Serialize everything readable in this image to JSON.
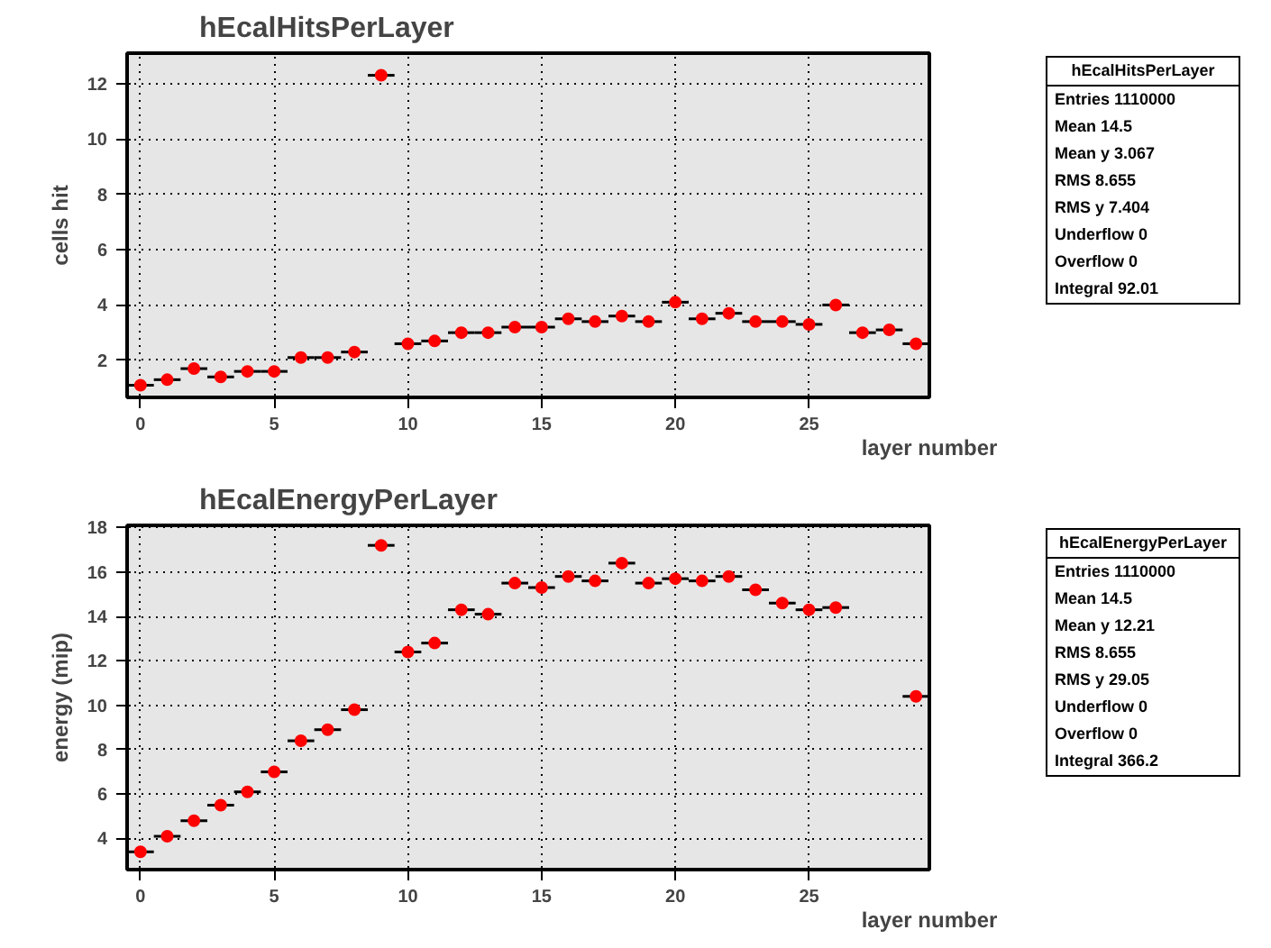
{
  "chart_data": [
    {
      "type": "scatter",
      "title": "hEcalHitsPerLayer",
      "xlabel": "layer number",
      "ylabel": "cells hit",
      "x": [
        0,
        1,
        2,
        3,
        4,
        5,
        6,
        7,
        8,
        9,
        10,
        11,
        12,
        13,
        14,
        15,
        16,
        17,
        18,
        19,
        20,
        21,
        22,
        23,
        24,
        25,
        26,
        27,
        28,
        29
      ],
      "series": [
        {
          "color": "#ff0000",
          "values": [
            1.1,
            1.3,
            1.7,
            1.4,
            1.6,
            1.6,
            2.1,
            2.1,
            2.3,
            12.3,
            2.6,
            2.7,
            3.0,
            3.0,
            3.2,
            3.2,
            3.5,
            3.4,
            3.6,
            3.4,
            4.1,
            3.5,
            3.7,
            3.4,
            3.4,
            3.3,
            4.0,
            3.0,
            3.1,
            2.6
          ],
          "xerrors": [
            0.5,
            0.5,
            0.5,
            0.5,
            0.5,
            0.5,
            0.5,
            0.5,
            0.5,
            0.5,
            0.5,
            0.5,
            0.5,
            0.5,
            0.5,
            0.5,
            0.5,
            0.5,
            0.5,
            0.5,
            0.5,
            0.5,
            0.5,
            0.5,
            0.5,
            0.5,
            0.5,
            0.5,
            0.5,
            0.5
          ]
        }
      ],
      "xlim": [
        -0.5,
        29.5
      ],
      "ylim": [
        0.66,
        13.1
      ],
      "xticks": [
        0,
        5,
        10,
        15,
        20,
        25
      ],
      "yticks": [
        2,
        4,
        6,
        8,
        10,
        12
      ],
      "grid": true,
      "marker": "circle",
      "annotations": [
        "hEcalHitsPerLayer",
        "Entries 1110000",
        "Mean 14.5",
        "Mean y 3.067",
        "RMS 8.655",
        "RMS y 7.404",
        "Underflow 0",
        "Overflow 0",
        "Integral 92.01"
      ]
    },
    {
      "type": "scatter",
      "title": "hEcalEnergyPerLayer",
      "xlabel": "layer number",
      "ylabel": "energy (mip)",
      "x": [
        0,
        1,
        2,
        3,
        4,
        5,
        6,
        7,
        8,
        9,
        10,
        11,
        12,
        13,
        14,
        15,
        16,
        17,
        18,
        19,
        20,
        21,
        22,
        23,
        24,
        25,
        26,
        27,
        28,
        29
      ],
      "series": [
        {
          "color": "#ff0000",
          "values": [
            3.4,
            4.1,
            4.8,
            5.5,
            6.1,
            7.0,
            8.4,
            8.9,
            9.8,
            17.2,
            12.4,
            12.8,
            14.3,
            14.1,
            15.5,
            15.3,
            15.8,
            15.6,
            16.4,
            15.5,
            15.7,
            15.6,
            15.8,
            15.2,
            14.6,
            14.3,
            14.4,
            null,
            null,
            10.4
          ],
          "xerrors": [
            0.5,
            0.5,
            0.5,
            0.5,
            0.5,
            0.5,
            0.5,
            0.5,
            0.5,
            0.5,
            0.5,
            0.5,
            0.5,
            0.5,
            0.5,
            0.5,
            0.5,
            0.5,
            0.5,
            0.5,
            0.5,
            0.5,
            0.5,
            0.5,
            0.5,
            0.5,
            0.5,
            null,
            null,
            0.5
          ]
        }
      ],
      "xlim": [
        -0.5,
        29.5
      ],
      "ylim": [
        2.6,
        18.1
      ],
      "xticks": [
        0,
        5,
        10,
        15,
        20,
        25
      ],
      "yticks": [
        4,
        6,
        8,
        10,
        12,
        14,
        16,
        18
      ],
      "grid": true,
      "marker": "circle",
      "annotations": [
        "hEcalEnergyPerLayer",
        "Entries 1110000",
        "Mean 14.5",
        "Mean y 12.21",
        "RMS 8.655",
        "RMS y 29.05",
        "Underflow 0",
        "Overflow 0",
        "Integral 366.2"
      ]
    }
  ]
}
